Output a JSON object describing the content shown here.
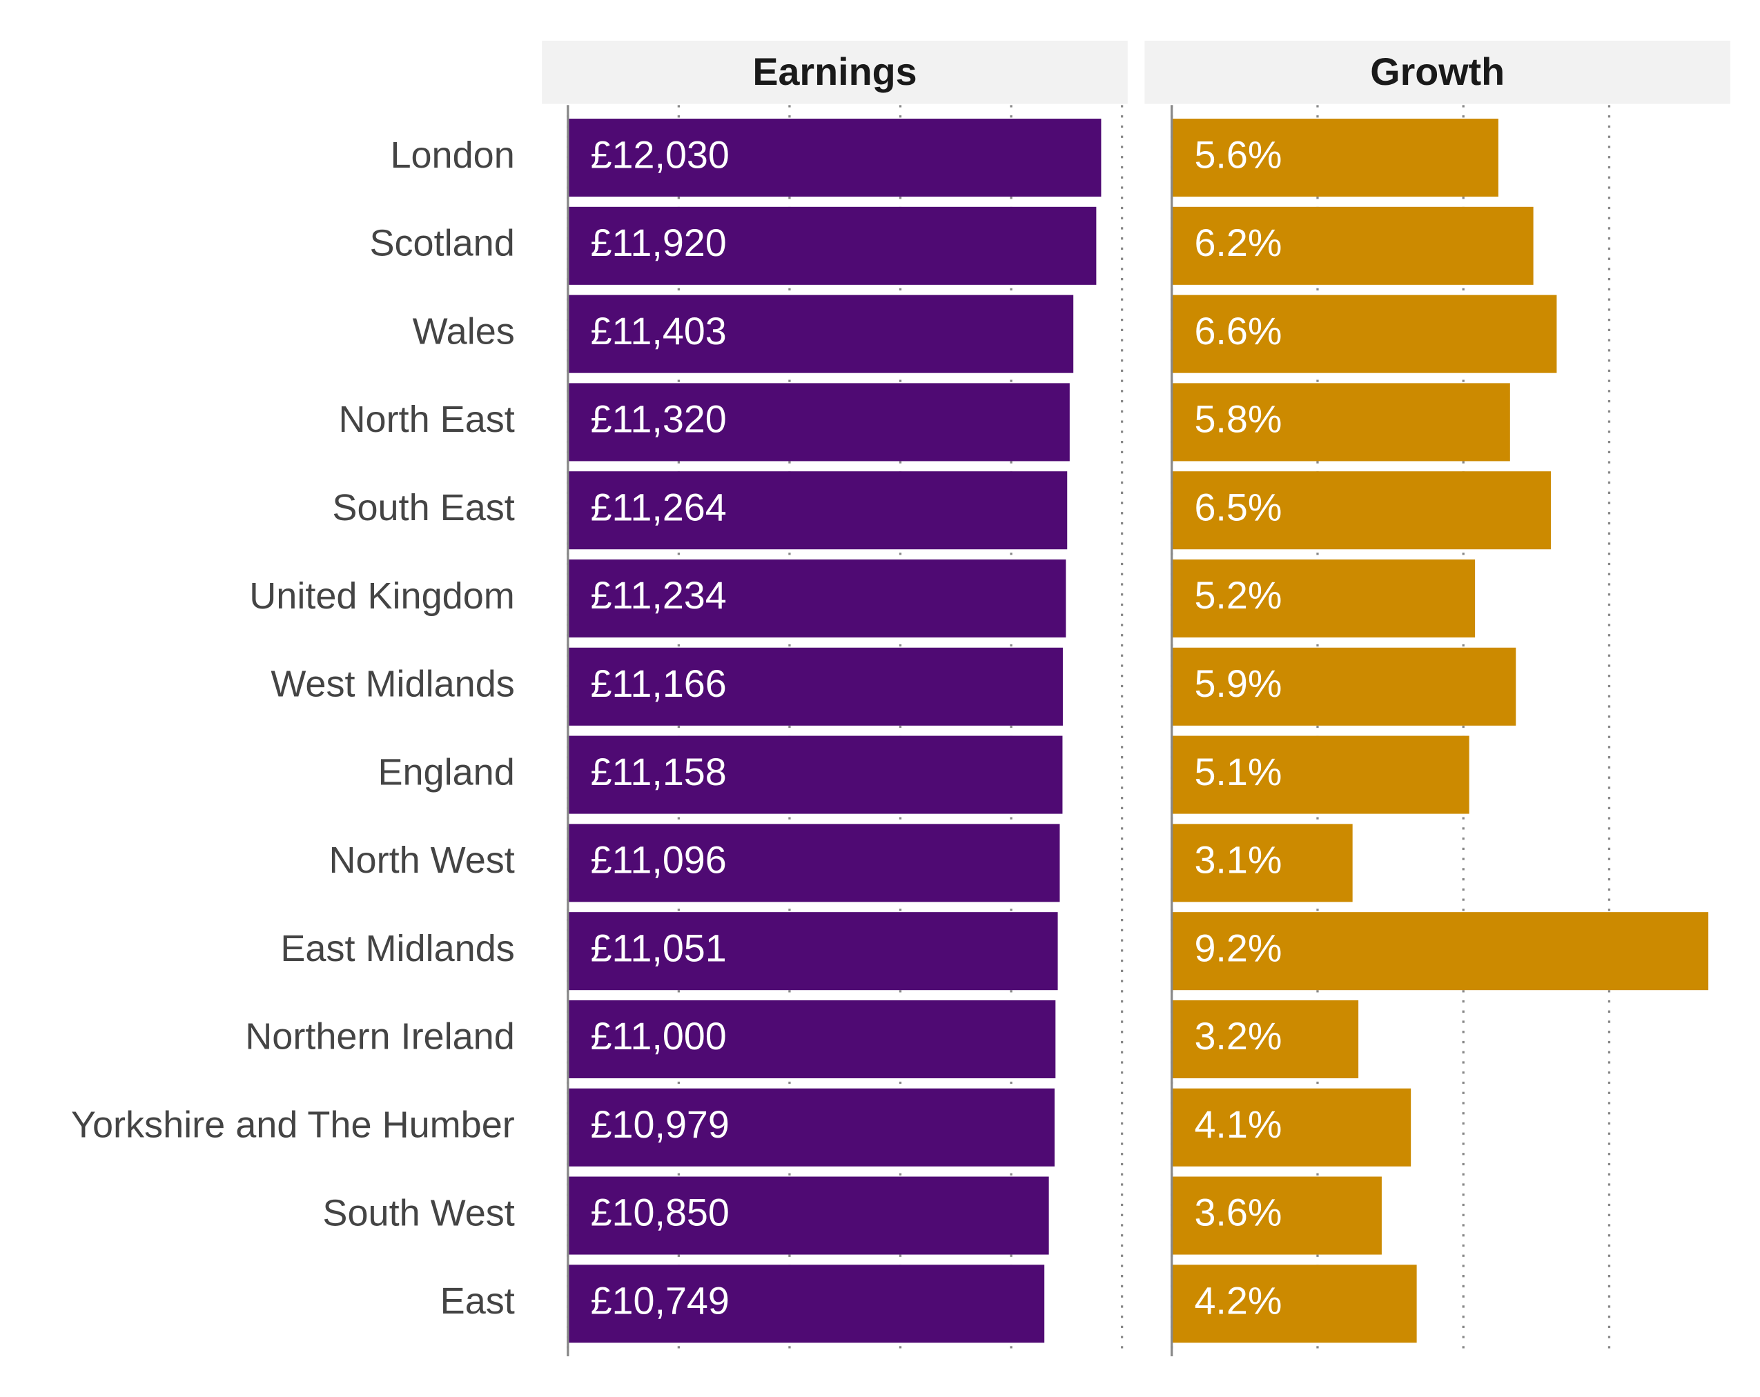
{
  "chart_data": {
    "type": "bar",
    "categories": [
      "London",
      "Scotland",
      "Wales",
      "North East",
      "South East",
      "United Kingdom",
      "West Midlands",
      "England",
      "North West",
      "East Midlands",
      "Northern Ireland",
      "Yorkshire and The Humber",
      "South West",
      "East"
    ],
    "series": [
      {
        "name": "Earnings",
        "color": "#4f0a73",
        "values": [
          12030,
          11920,
          11403,
          11320,
          11264,
          11234,
          11166,
          11158,
          11096,
          11051,
          11000,
          10979,
          10850,
          10749
        ],
        "value_labels": [
          "£12,030",
          "£11,920",
          "£11,403",
          "£11,320",
          "£11,264",
          "£11,234",
          "£11,166",
          "£11,158",
          "£11,096",
          "£11,051",
          "£11,000",
          "£10,979",
          "£10,850",
          "£10,749"
        ],
        "xlim": [
          0,
          12500
        ],
        "xticks": [
          0,
          2500,
          5000,
          7500,
          10000,
          12500
        ]
      },
      {
        "name": "Growth",
        "color": "#cc8a00",
        "values": [
          5.6,
          6.2,
          6.6,
          5.8,
          6.5,
          5.2,
          5.9,
          5.1,
          3.1,
          9.2,
          3.2,
          4.1,
          3.6,
          4.2
        ],
        "value_labels": [
          "5.6%",
          "6.2%",
          "6.6%",
          "5.8%",
          "6.5%",
          "5.2%",
          "5.9%",
          "5.1%",
          "3.1%",
          "9.2%",
          "3.2%",
          "4.1%",
          "3.6%",
          "4.2%"
        ],
        "xlim": [
          0,
          9.5
        ],
        "xticks": [
          0,
          2.5,
          5,
          7.5
        ]
      }
    ],
    "grid": true
  }
}
